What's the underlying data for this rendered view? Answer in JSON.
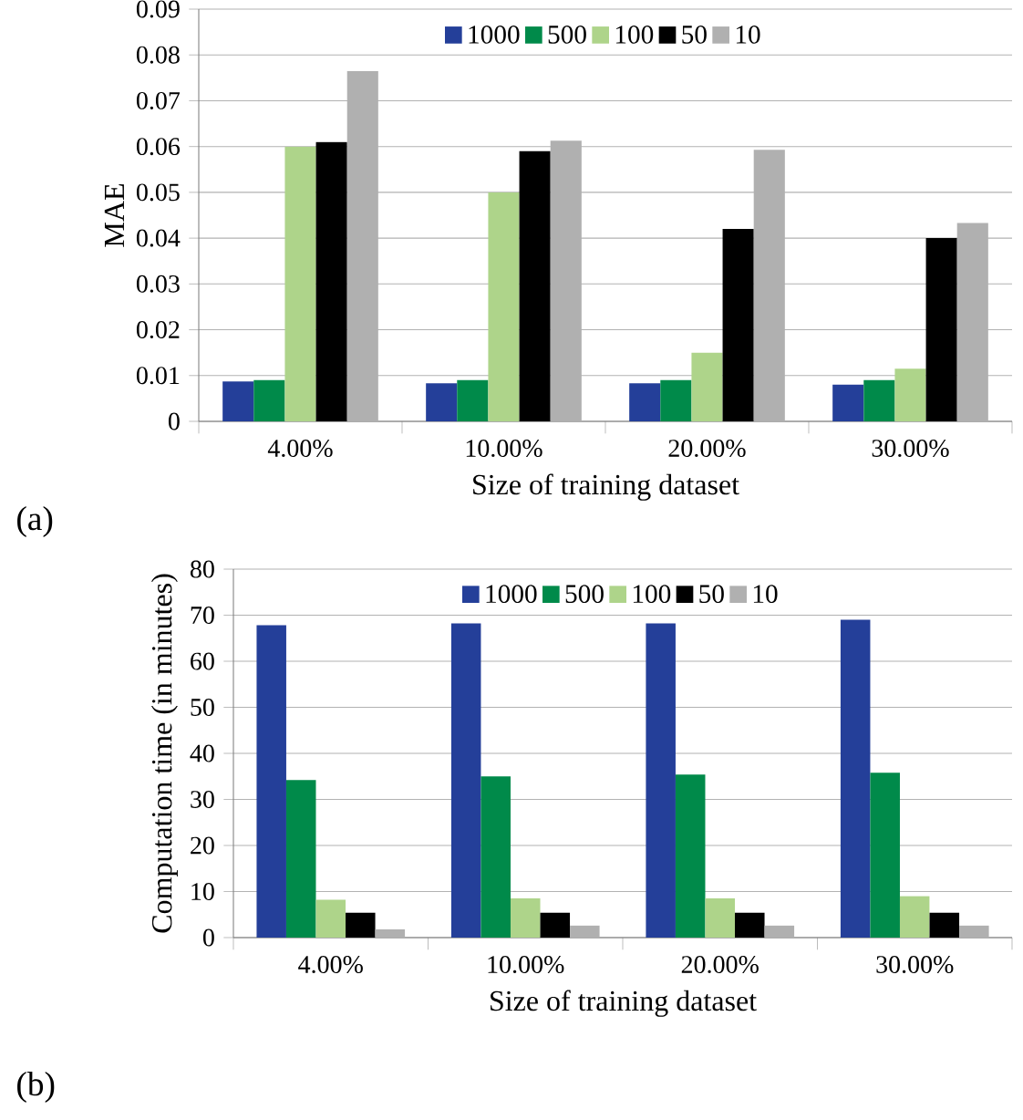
{
  "chart_data": [
    {
      "type": "bar",
      "xlabel": "Size of training dataset",
      "ylabel": "MAE",
      "categories": [
        "4.00%",
        "10.00%",
        "20.00%",
        "30.00%"
      ],
      "series": [
        {
          "name": "1000",
          "color": "#243f99",
          "values": [
            0.0087,
            0.0083,
            0.0083,
            0.008
          ]
        },
        {
          "name": "500",
          "color": "#008a4a",
          "values": [
            0.009,
            0.009,
            0.009,
            0.009
          ]
        },
        {
          "name": "100",
          "color": "#aed48a",
          "values": [
            0.06,
            0.05,
            0.015,
            0.0115
          ]
        },
        {
          "name": "50",
          "color": "#000000",
          "values": [
            0.061,
            0.059,
            0.042,
            0.04
          ]
        },
        {
          "name": "10",
          "color": "#b0b0b0",
          "values": [
            0.0765,
            0.0613,
            0.0593,
            0.0433
          ]
        }
      ],
      "ylim": [
        0,
        0.09
      ],
      "yticks": [
        0,
        0.01,
        0.02,
        0.03,
        0.04,
        0.05,
        0.06,
        0.07,
        0.08,
        0.09
      ],
      "grid": "y",
      "legend": "top",
      "annotations": [
        "(a)"
      ]
    },
    {
      "type": "bar",
      "xlabel": "Size of training dataset",
      "ylabel": "Computation time (in minutes)",
      "categories": [
        "4.00%",
        "10.00%",
        "20.00%",
        "30.00%"
      ],
      "series": [
        {
          "name": "1000",
          "color": "#243f99",
          "values": [
            67.8,
            68.2,
            68.2,
            69
          ]
        },
        {
          "name": "500",
          "color": "#008a4a",
          "values": [
            34.2,
            35,
            35.4,
            35.8
          ]
        },
        {
          "name": "100",
          "color": "#aed48a",
          "values": [
            8.2,
            8.5,
            8.5,
            9
          ]
        },
        {
          "name": "50",
          "color": "#000000",
          "values": [
            5.4,
            5.4,
            5.4,
            5.4
          ]
        },
        {
          "name": "10",
          "color": "#b0b0b0",
          "values": [
            1.8,
            2.6,
            2.6,
            2.6
          ]
        }
      ],
      "ylim": [
        0,
        80
      ],
      "yticks": [
        0,
        10,
        20,
        30,
        40,
        50,
        60,
        70,
        80
      ],
      "grid": "y",
      "legend": "top",
      "annotations": [
        "(b)"
      ]
    }
  ]
}
